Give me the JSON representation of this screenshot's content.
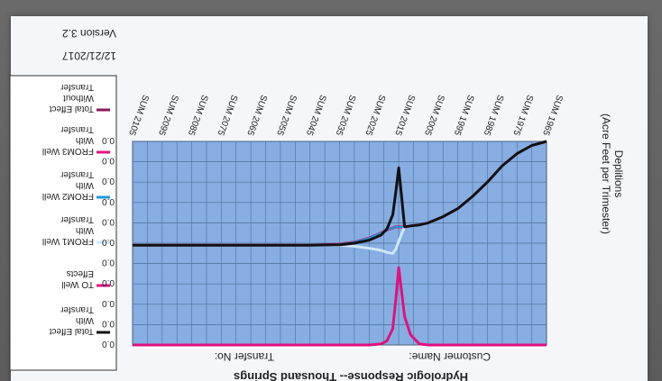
{
  "chart_data": {
    "type": "line",
    "title": "Hydrologic Response-- Thousand Springs",
    "customer_label": "Customer Name:",
    "transfer_label": "Transfer No:",
    "date": "12/21/2017",
    "version": "Version 3.2",
    "ylabel": "Deplitions",
    "ylabel2": "(Acre Feet per Trimester)",
    "yticks": [
      "0.0",
      "0.0",
      "0.0",
      "0.0",
      "0.0",
      "0.0",
      "0.0",
      "0.0",
      "0.0",
      "0.0",
      "0.0"
    ],
    "categories": [
      "SUM 1965",
      "SUM 1975",
      "SUM 1985",
      "SUM 1995",
      "SUM 2005",
      "SUM 2015",
      "SUM 2025",
      "SUM 2035",
      "SUM 2045",
      "SUM 2055",
      "SUM 2065",
      "SUM 2075",
      "SUM 2085",
      "SUM 2095",
      "SUM 2105"
    ],
    "x": [
      1965,
      1970,
      1975,
      1980,
      1985,
      1990,
      1995,
      2000,
      2005,
      2008,
      2011,
      2013,
      2015,
      2016,
      2017,
      2019,
      2021,
      2025,
      2030,
      2035,
      2045,
      2055,
      2065,
      2075,
      2085,
      2095,
      2105
    ],
    "ylim": [
      0,
      10
    ],
    "series": [
      {
        "name": "Total Effect With Transfer",
        "color": "#111111",
        "values": [
          0.0,
          0.2,
          0.6,
          1.2,
          2.0,
          2.7,
          3.3,
          3.7,
          4.0,
          4.1,
          4.15,
          4.2,
          1.3,
          2.5,
          3.6,
          4.3,
          4.6,
          4.85,
          5.0,
          5.08,
          5.1,
          5.1,
          5.1,
          5.1,
          5.1,
          5.1,
          5.1
        ]
      },
      {
        "name": "TO Well Effects",
        "color": "#e0117f",
        "values": [
          0.0,
          0.2,
          0.6,
          1.2,
          2.0,
          2.7,
          3.3,
          3.7,
          4.0,
          4.1,
          4.15,
          4.2,
          4.2,
          4.2,
          4.25,
          4.35,
          4.5,
          4.75,
          4.95,
          5.05,
          5.1,
          5.1,
          5.1,
          5.1,
          5.1,
          5.1,
          5.1
        ]
      },
      {
        "name": "FROM1 Well With Transfer",
        "color": "#cfe7f7",
        "values": [
          0.0,
          0.2,
          0.6,
          1.2,
          2.0,
          2.7,
          3.3,
          3.7,
          4.0,
          4.1,
          4.15,
          4.2,
          4.9,
          5.3,
          5.5,
          5.45,
          5.35,
          5.25,
          5.15,
          5.1,
          5.1,
          5.1,
          5.1,
          5.1,
          5.1,
          5.1,
          5.1
        ]
      },
      {
        "name": "FROM2 Well With Transfer",
        "color": "#1d9bd6",
        "values": [
          0.0,
          0.2,
          0.6,
          1.2,
          2.0,
          2.7,
          3.3,
          3.7,
          4.0,
          4.1,
          4.15,
          4.2,
          4.2,
          4.2,
          4.25,
          4.35,
          4.5,
          4.75,
          4.95,
          5.05,
          5.1,
          5.1,
          5.1,
          5.1,
          5.1,
          5.1,
          5.1
        ]
      },
      {
        "name": "FROM3 Well With Transfer",
        "color": "#e0117f",
        "values": [
          10,
          10,
          10,
          10,
          10,
          10,
          10,
          10,
          10,
          9.95,
          9.5,
          8.6,
          6.2,
          7.8,
          9.2,
          9.8,
          9.95,
          10,
          10,
          10,
          10,
          10,
          10,
          10,
          10,
          10,
          10
        ]
      },
      {
        "name": "Total Effect Without Transfer",
        "color": "#8b1a5c",
        "values": [
          0.0,
          0.2,
          0.6,
          1.2,
          2.0,
          2.7,
          3.3,
          3.7,
          4.0,
          4.1,
          4.15,
          4.2,
          4.2,
          4.2,
          4.25,
          4.35,
          4.5,
          4.75,
          4.95,
          5.05,
          5.1,
          5.1,
          5.1,
          5.1,
          5.1,
          5.1,
          5.1
        ]
      }
    ],
    "grid": true,
    "legend": "right"
  }
}
